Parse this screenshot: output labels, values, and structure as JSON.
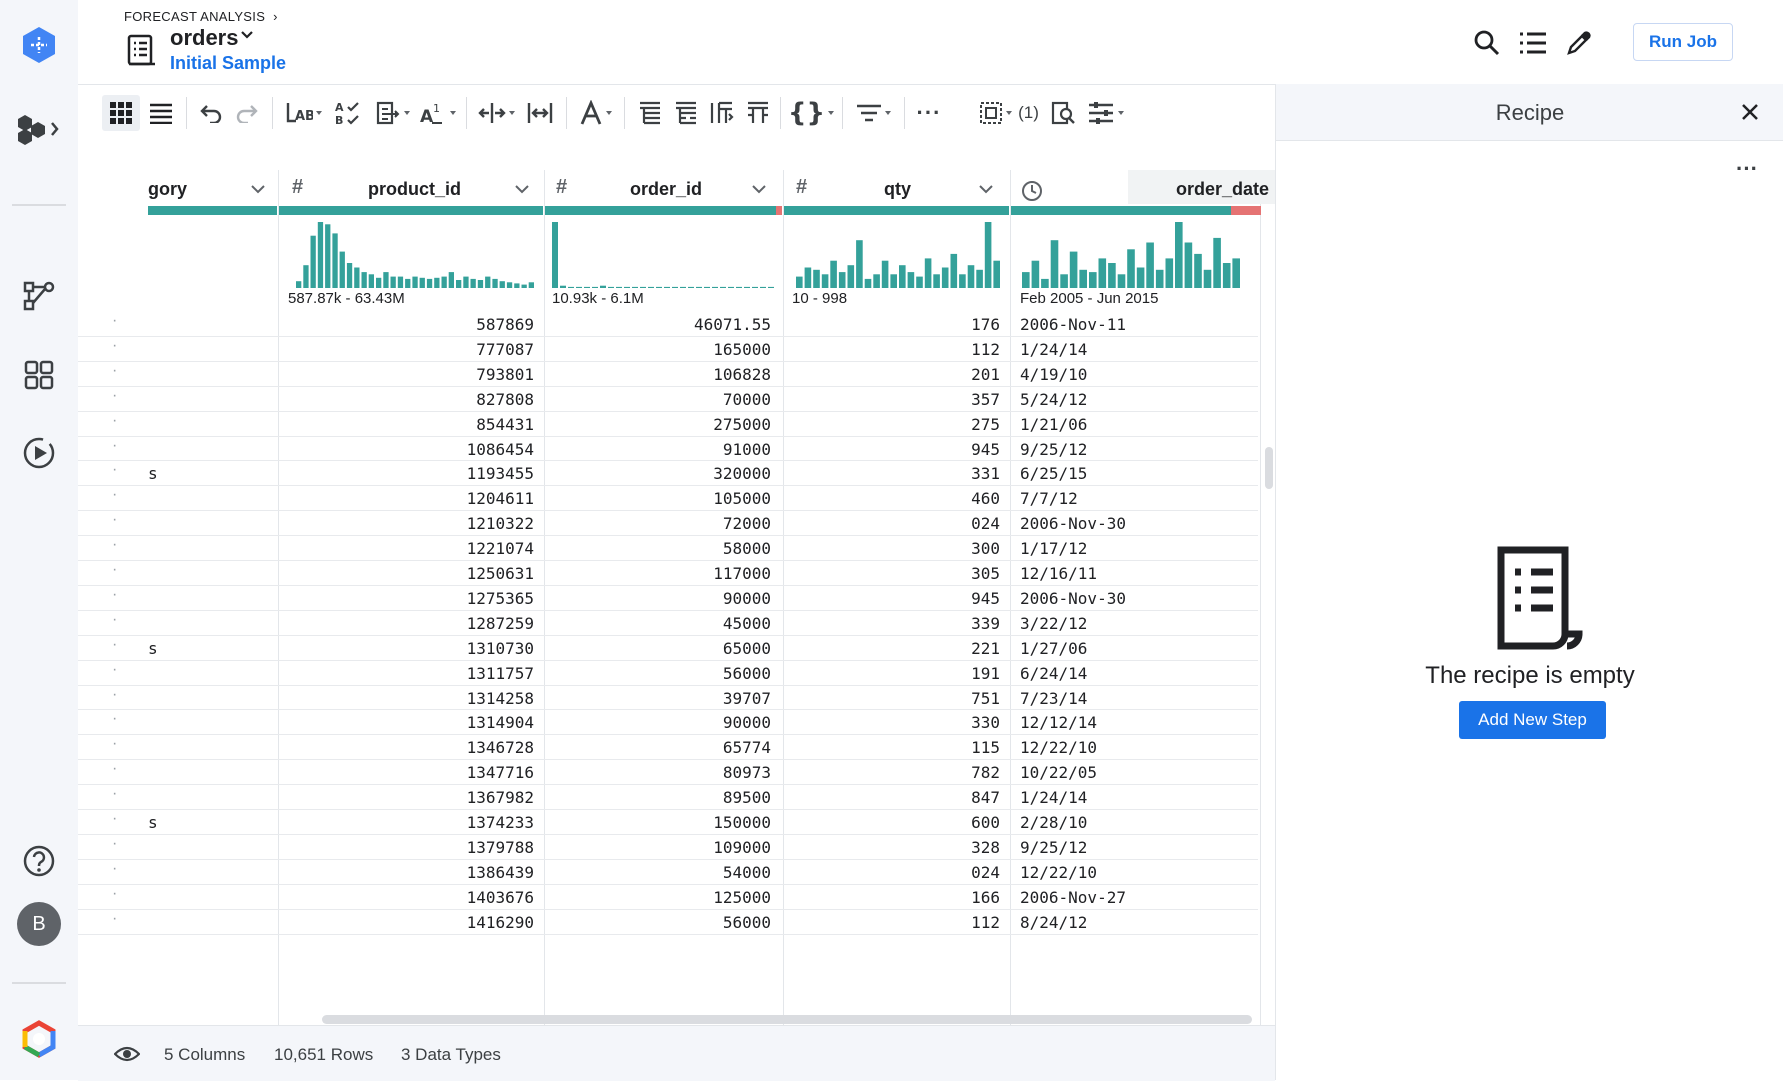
{
  "header": {
    "breadcrumb": "FORECAST ANALYSIS",
    "dataset_name": "orders",
    "sample_label": "Initial Sample",
    "run_job_label": "Run Job"
  },
  "rail": {
    "icons": [
      "dataprep-logo-icon",
      "flows-icon",
      "flow-view-icon",
      "library-icon",
      "jobs-icon",
      "help-icon",
      "user-avatar",
      "google-cloud-icon"
    ],
    "avatar_letter": "B"
  },
  "toolbar": {
    "icons": [
      "grid-view-icon",
      "list-view-icon",
      "undo-icon",
      "redo-icon",
      "column-transform-icon",
      "filter-values-icon",
      "format-icon",
      "text-icon",
      "split-icon",
      "merge-icon",
      "font-icon",
      "nest-icon",
      "unnest-icon",
      "pivot-icon",
      "restructure-icon",
      "object-icon",
      "filter-icon",
      "more-icon",
      "select-columns-icon",
      "lookup-icon",
      "settings-icon"
    ],
    "selected_count": "(1)"
  },
  "columns": [
    {
      "name": "gory",
      "type": "",
      "range": ""
    },
    {
      "name": "product_id",
      "type": "#",
      "range": "587.87k - 63.43M"
    },
    {
      "name": "order_id",
      "type": "#",
      "range": "10.93k - 6.1M"
    },
    {
      "name": "qty",
      "type": "#",
      "range": "10 - 998"
    },
    {
      "name": "order_date",
      "type": "clock",
      "range": "Feb 2005 - Jun 2015"
    }
  ],
  "histograms": {
    "product_id": [
      6,
      20,
      46,
      58,
      56,
      48,
      32,
      22,
      18,
      14,
      12,
      9,
      14,
      10,
      10,
      8,
      10,
      9,
      8,
      9,
      10,
      14,
      7,
      10,
      8,
      7,
      10,
      8,
      6,
      5,
      4,
      3,
      5
    ],
    "order_id": [
      58,
      2,
      1,
      1,
      1,
      1,
      2,
      1,
      1,
      1,
      1,
      1,
      1,
      1,
      1,
      1,
      1,
      1,
      1,
      1,
      1,
      1,
      1,
      1,
      1,
      1,
      1,
      1
    ],
    "qty": [
      10,
      18,
      16,
      12,
      24,
      14,
      20,
      42,
      8,
      12,
      24,
      12,
      20,
      14,
      10,
      26,
      12,
      18,
      30,
      12,
      20,
      16,
      58,
      24
    ],
    "order_date": [
      14,
      24,
      8,
      42,
      12,
      32,
      16,
      14,
      26,
      22,
      12,
      34,
      18,
      40,
      16,
      26,
      58,
      40,
      30,
      16,
      44,
      22,
      26
    ]
  },
  "rows": [
    {
      "flag": "",
      "product_id": "587869",
      "order_id": "46071.55",
      "qty": "176",
      "order_date": "2006-Nov-11"
    },
    {
      "flag": "",
      "product_id": "777087",
      "order_id": "165000",
      "qty": "112",
      "order_date": "1/24/14"
    },
    {
      "flag": "",
      "product_id": "793801",
      "order_id": "106828",
      "qty": "201",
      "order_date": "4/19/10"
    },
    {
      "flag": "",
      "product_id": "827808",
      "order_id": "70000",
      "qty": "357",
      "order_date": "5/24/12"
    },
    {
      "flag": "",
      "product_id": "854431",
      "order_id": "275000",
      "qty": "275",
      "order_date": "1/21/06"
    },
    {
      "flag": "",
      "product_id": "1086454",
      "order_id": "91000",
      "qty": "945",
      "order_date": "9/25/12"
    },
    {
      "flag": "s",
      "product_id": "1193455",
      "order_id": "320000",
      "qty": "331",
      "order_date": "6/25/15"
    },
    {
      "flag": "",
      "product_id": "1204611",
      "order_id": "105000",
      "qty": "460",
      "order_date": "7/7/12"
    },
    {
      "flag": "",
      "product_id": "1210322",
      "order_id": "72000",
      "qty": "024",
      "order_date": "2006-Nov-30"
    },
    {
      "flag": "",
      "product_id": "1221074",
      "order_id": "58000",
      "qty": "300",
      "order_date": "1/17/12"
    },
    {
      "flag": "",
      "product_id": "1250631",
      "order_id": "117000",
      "qty": "305",
      "order_date": "12/16/11"
    },
    {
      "flag": "",
      "product_id": "1275365",
      "order_id": "90000",
      "qty": "945",
      "order_date": "2006-Nov-30"
    },
    {
      "flag": "",
      "product_id": "1287259",
      "order_id": "45000",
      "qty": "339",
      "order_date": "3/22/12"
    },
    {
      "flag": "s",
      "product_id": "1310730",
      "order_id": "65000",
      "qty": "221",
      "order_date": "1/27/06"
    },
    {
      "flag": "",
      "product_id": "1311757",
      "order_id": "56000",
      "qty": "191",
      "order_date": "6/24/14"
    },
    {
      "flag": "",
      "product_id": "1314258",
      "order_id": "39707",
      "qty": "751",
      "order_date": "7/23/14"
    },
    {
      "flag": "",
      "product_id": "1314904",
      "order_id": "90000",
      "qty": "330",
      "order_date": "12/12/14"
    },
    {
      "flag": "",
      "product_id": "1346728",
      "order_id": "65774",
      "qty": "115",
      "order_date": "12/22/10"
    },
    {
      "flag": "",
      "product_id": "1347716",
      "order_id": "80973",
      "qty": "782",
      "order_date": "10/22/05"
    },
    {
      "flag": "",
      "product_id": "1367982",
      "order_id": "89500",
      "qty": "847",
      "order_date": "1/24/14"
    },
    {
      "flag": "s",
      "product_id": "1374233",
      "order_id": "150000",
      "qty": "600",
      "order_date": "2/28/10"
    },
    {
      "flag": "",
      "product_id": "1379788",
      "order_id": "109000",
      "qty": "328",
      "order_date": "9/25/12"
    },
    {
      "flag": "",
      "product_id": "1386439",
      "order_id": "54000",
      "qty": "024",
      "order_date": "12/22/10"
    },
    {
      "flag": "",
      "product_id": "1403676",
      "order_id": "125000",
      "qty": "166",
      "order_date": "2006-Nov-27"
    },
    {
      "flag": "",
      "product_id": "1416290",
      "order_id": "56000",
      "qty": "112",
      "order_date": "8/24/12"
    }
  ],
  "recipe": {
    "title": "Recipe",
    "empty_text": "The recipe is empty",
    "add_step_label": "Add New Step"
  },
  "footer": {
    "columns": "5 Columns",
    "rows": "10,651 Rows",
    "types": "3 Data Types"
  },
  "colors": {
    "accent": "#1a73e8",
    "valid": "#34a19a",
    "mismatch": "#e57373"
  }
}
